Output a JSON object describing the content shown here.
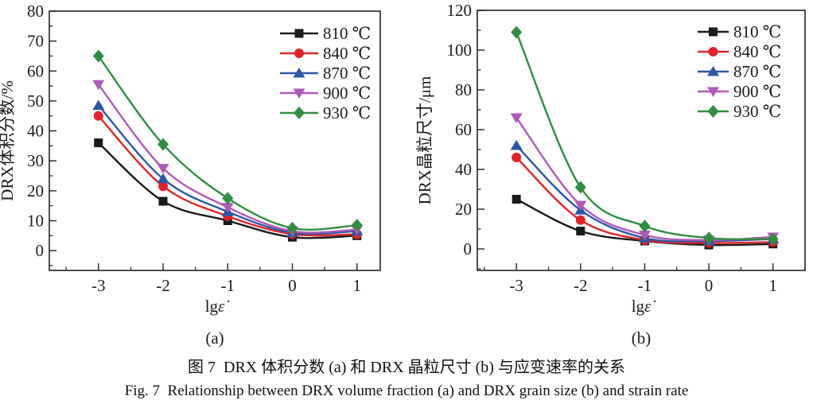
{
  "figure": {
    "caption_zh": "图 7  DRX 体积分数 (a) 和 DRX 晶粒尺寸 (b) 与应变速率的关系",
    "caption_en": "Fig. 7  Relationship between DRX volume fraction (a) and DRX grain size (b) and strain rate"
  },
  "colors": {
    "axis": "#222222",
    "c810": "#1a1a1a",
    "c840": "#e42328",
    "c870": "#2b57a7",
    "c900": "#b159b8",
    "c930": "#2f8e41"
  },
  "chart_data": [
    {
      "type": "scatter",
      "panel": "a",
      "panel_label": "(a)",
      "title": "",
      "xlabel": "lgε̇",
      "ylabel": "DRX体积分数/%",
      "x": [
        -3,
        -2,
        -1,
        0,
        1
      ],
      "xticks": [
        -3,
        -2,
        -1,
        0,
        1
      ],
      "yticks": [
        0,
        10,
        20,
        30,
        40,
        50,
        60,
        70,
        80
      ],
      "xlim": [
        -3.76,
        1.36
      ],
      "ylim": [
        -6.6,
        80
      ],
      "minor_x_step": 0.5,
      "minor_y_step": 5,
      "grid": false,
      "legend_position": "top-right-inside",
      "series": [
        {
          "name": "810 ℃",
          "marker": "square",
          "color": "#1a1a1a",
          "values": [
            36,
            16.5,
            10,
            4.5,
            5
          ]
        },
        {
          "name": "840 ℃",
          "marker": "circle",
          "color": "#e42328",
          "values": [
            45,
            21.5,
            11.5,
            5.5,
            5.5
          ]
        },
        {
          "name": "870 ℃",
          "marker": "triangle-up",
          "color": "#2b57a7",
          "values": [
            48.5,
            24,
            13,
            6,
            6.5
          ]
        },
        {
          "name": "900 ℃",
          "marker": "triangle-down",
          "color": "#b159b8",
          "values": [
            55.5,
            27.5,
            14.5,
            6.5,
            7
          ]
        },
        {
          "name": "930 ℃",
          "marker": "diamond",
          "color": "#2f8e41",
          "values": [
            65,
            35.5,
            17.5,
            7.5,
            8.5
          ]
        }
      ]
    },
    {
      "type": "scatter",
      "panel": "b",
      "panel_label": "(b)",
      "title": "",
      "xlabel": "lgε̇",
      "ylabel": "DRX晶粒尺寸/μm",
      "x": [
        -3,
        -2,
        -1,
        0,
        1
      ],
      "xticks": [
        -3,
        -2,
        -1,
        0,
        1
      ],
      "yticks": [
        0,
        20,
        40,
        60,
        80,
        100,
        120
      ],
      "xlim": [
        -3.61,
        1.5
      ],
      "ylim": [
        -10.8,
        120
      ],
      "minor_x_step": 0.5,
      "minor_y_step": 10,
      "grid": false,
      "legend_position": "top-right-inside",
      "series": [
        {
          "name": "810 ℃",
          "marker": "square",
          "color": "#1a1a1a",
          "values": [
            25,
            9,
            4,
            2,
            2.5
          ]
        },
        {
          "name": "840 ℃",
          "marker": "circle",
          "color": "#e42328",
          "values": [
            46,
            14.5,
            4.5,
            3,
            3.5
          ]
        },
        {
          "name": "870 ℃",
          "marker": "triangle-up",
          "color": "#2b57a7",
          "values": [
            52,
            19.5,
            5.5,
            4,
            5
          ]
        },
        {
          "name": "900 ℃",
          "marker": "triangle-down",
          "color": "#b159b8",
          "values": [
            66,
            22,
            7,
            4.5,
            6
          ]
        },
        {
          "name": "930 ℃",
          "marker": "diamond",
          "color": "#2f8e41",
          "values": [
            109,
            31,
            11.5,
            5.5,
            5
          ]
        }
      ]
    }
  ]
}
